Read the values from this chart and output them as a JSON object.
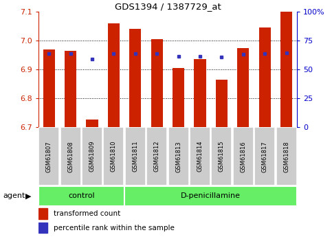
{
  "title": "GDS1394 / 1387729_at",
  "samples": [
    "GSM61807",
    "GSM61808",
    "GSM61809",
    "GSM61810",
    "GSM61811",
    "GSM61812",
    "GSM61813",
    "GSM61814",
    "GSM61815",
    "GSM61816",
    "GSM61817",
    "GSM61818"
  ],
  "red_values": [
    6.97,
    6.965,
    6.725,
    7.06,
    7.04,
    7.005,
    6.905,
    6.935,
    6.865,
    6.975,
    7.045,
    7.1
  ],
  "blue_values": [
    6.955,
    6.955,
    6.935,
    6.955,
    6.955,
    6.955,
    6.945,
    6.945,
    6.943,
    6.953,
    6.955,
    6.958
  ],
  "ylim_left": [
    6.7,
    7.1
  ],
  "ylim_right": [
    0,
    100
  ],
  "yticks_left": [
    6.7,
    6.8,
    6.9,
    7.0,
    7.1
  ],
  "yticks_right": [
    0,
    25,
    50,
    75,
    100
  ],
  "base": 6.7,
  "group_separator": 4,
  "bar_color": "#CC2200",
  "dot_color": "#3333BB",
  "left_axis_color": "#CC2200",
  "right_axis_color": "#0000CC",
  "legend_red": "transformed count",
  "legend_blue": "percentile rank within the sample",
  "bar_width": 0.55,
  "background_plot": "#FFFFFF",
  "tick_area_color": "#CCCCCC",
  "group_color": "#66EE66",
  "group_control_label": "control",
  "group_penicil_label": "D-penicillamine",
  "agent_label": "agent",
  "grid_yticks": [
    6.8,
    6.9,
    7.0
  ]
}
